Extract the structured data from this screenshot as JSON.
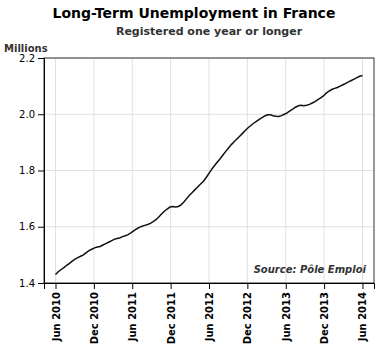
{
  "chart_data": {
    "type": "line",
    "title": "Long-Term Unemployment in France",
    "subtitle": "Registered one year or longer",
    "ylabel": "Millions",
    "annotation": "Source: Pôle Emploi",
    "color": "#111111",
    "grid": true,
    "xlim": [
      -0.3,
      8.3
    ],
    "xticks": [
      {
        "value": 0,
        "label": "Jun 2010"
      },
      {
        "value": 1,
        "label": "Dec 2010"
      },
      {
        "value": 2,
        "label": "Jun 2011"
      },
      {
        "value": 3,
        "label": "Dec 2011"
      },
      {
        "value": 4,
        "label": "Jun 2012"
      },
      {
        "value": 5,
        "label": "Dec 2012"
      },
      {
        "value": 6,
        "label": "Jun 2013"
      },
      {
        "value": 7,
        "label": "Dec 2013"
      },
      {
        "value": 8,
        "label": "Jun 2014"
      }
    ],
    "ylim": [
      1.4,
      2.2
    ],
    "yticks": [
      1.4,
      1.6,
      1.8,
      {
        "value": 2.0,
        "label": "2.0"
      },
      2.2
    ],
    "x": [
      0,
      0.072727,
      0.145455,
      0.218182,
      0.290909,
      0.363636,
      0.436364,
      0.509091,
      0.581818,
      0.654545,
      0.727273,
      0.8,
      0.872727,
      0.945455,
      1.018182,
      1.090909,
      1.163636,
      1.236364,
      1.309091,
      1.381818,
      1.454545,
      1.527273,
      1.6,
      1.672727,
      1.745455,
      1.818182,
      1.890909,
      1.963636,
      2.036364,
      2.109091,
      2.181818,
      2.254545,
      2.327273,
      2.4,
      2.472727,
      2.545455,
      2.618182,
      2.690909,
      2.763636,
      2.836364,
      2.909091,
      2.981818,
      3.054545,
      3.127273,
      3.2,
      3.272727,
      3.345455,
      3.418182,
      3.490909,
      3.563636,
      3.636364,
      3.709091,
      3.781818,
      3.854545,
      3.927273,
      4,
      4.072727,
      4.145455,
      4.218182,
      4.290909,
      4.363636,
      4.436364,
      4.509091,
      4.581818,
      4.654545,
      4.727273,
      4.8,
      4.872727,
      4.945455,
      5.018182,
      5.090909,
      5.163636,
      5.236364,
      5.309091,
      5.381818,
      5.454545,
      5.527273,
      5.6,
      5.672727,
      5.745455,
      5.818182,
      5.890909,
      5.963636,
      6.036364,
      6.109091,
      6.181818,
      6.254545,
      6.327273,
      6.4,
      6.472727,
      6.545455,
      6.618182,
      6.690909,
      6.763636,
      6.836364,
      6.909091,
      6.981818,
      7.054545,
      7.127273,
      7.2,
      7.272727,
      7.345455,
      7.418182,
      7.490909,
      7.563636,
      7.636364,
      7.709091,
      7.781818,
      7.854545,
      7.927273,
      8
    ],
    "values": [
      1.43,
      1.44,
      1.448,
      1.455,
      1.463,
      1.47,
      1.478,
      1.485,
      1.49,
      1.495,
      1.5,
      1.508,
      1.515,
      1.52,
      1.525,
      1.528,
      1.53,
      1.535,
      1.54,
      1.545,
      1.55,
      1.555,
      1.558,
      1.56,
      1.565,
      1.568,
      1.572,
      1.578,
      1.585,
      1.592,
      1.598,
      1.602,
      1.605,
      1.608,
      1.612,
      1.618,
      1.625,
      1.635,
      1.645,
      1.655,
      1.663,
      1.67,
      1.672,
      1.67,
      1.672,
      1.678,
      1.688,
      1.7,
      1.712,
      1.722,
      1.732,
      1.742,
      1.752,
      1.762,
      1.775,
      1.79,
      1.805,
      1.818,
      1.83,
      1.842,
      1.855,
      1.868,
      1.88,
      1.892,
      1.902,
      1.912,
      1.922,
      1.932,
      1.942,
      1.952,
      1.96,
      1.968,
      1.975,
      1.982,
      1.988,
      1.994,
      1.998,
      1.998,
      1.995,
      1.993,
      1.992,
      1.995,
      2.0,
      2.005,
      2.012,
      2.018,
      2.025,
      2.03,
      2.032,
      2.03,
      2.032,
      2.035,
      2.04,
      2.045,
      2.052,
      2.058,
      2.065,
      2.075,
      2.082,
      2.088,
      2.092,
      2.095,
      2.1,
      2.105,
      2.11,
      2.115,
      2.12,
      2.125,
      2.13,
      2.135,
      2.138
    ]
  }
}
